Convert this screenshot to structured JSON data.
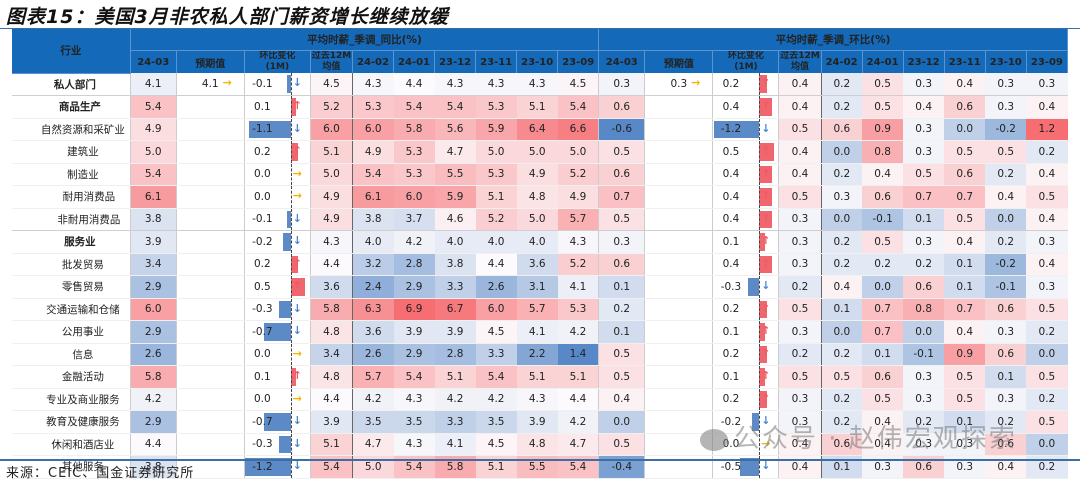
{
  "title": "图表15：美国3月非农私人部门薪资增长继续放缓",
  "source": "来源：CEIC、国金证券研究所",
  "watermark": "公众号 · 赵伟宏观探索",
  "header": {
    "industry": "行业",
    "group_yoy": "平均时薪_季调_同比(%)",
    "group_mom": "平均时薪_季调_环比(%)",
    "cols": [
      "24-03",
      "预期值",
      "环比变化(1M)",
      "过去12M均值",
      "24-02",
      "24-01",
      "23-12",
      "23-11",
      "23-10",
      "23-09"
    ],
    "chg_line1": "环比变化",
    "chg_line2": "(1M)",
    "avg_line1": "过去12M",
    "avg_line2": "均值"
  },
  "colors": {
    "header_bg": "#1469b8",
    "pos_bar": "#f0666e",
    "neg_bar": "#5b8ac7",
    "up_arrow": "#f05a60",
    "down_arrow": "#4a86d0",
    "flat_arrow": "#f3b400"
  },
  "rows": [
    {
      "name": "私人部门",
      "level": 0,
      "yoy": {
        "cur": "4.1",
        "exp": "4.1",
        "exp_arrow": "→",
        "chg": "-0.1",
        "chg_dir": "down",
        "avg": "4.5",
        "hist": [
          "4.3",
          "4.4",
          "4.3",
          "4.3",
          "4.3",
          "4.5"
        ]
      },
      "mom": {
        "cur": "0.3",
        "exp": "0.3",
        "exp_arrow": "→",
        "chg": "0.2",
        "chg_dir": "up",
        "avg": "0.4",
        "hist": [
          "0.2",
          "0.5",
          "0.3",
          "0.4",
          "0.3",
          "0.3"
        ]
      }
    },
    {
      "name": "商品生产",
      "level": 1,
      "yoy": {
        "cur": "5.4",
        "exp": "",
        "chg": "0.1",
        "chg_dir": "up",
        "avg": "5.2",
        "hist": [
          "5.3",
          "5.4",
          "5.4",
          "5.3",
          "5.1",
          "5.4"
        ]
      },
      "mom": {
        "cur": "0.6",
        "exp": "",
        "chg": "0.4",
        "chg_dir": "up",
        "avg": "0.4",
        "hist": [
          "0.2",
          "0.5",
          "0.4",
          "0.6",
          "0.3",
          "0.4"
        ]
      }
    },
    {
      "name": "自然资源和采矿业",
      "level": 2,
      "yoy": {
        "cur": "4.9",
        "exp": "",
        "chg": "-1.1",
        "chg_dir": "down",
        "avg": "6.0",
        "hist": [
          "6.0",
          "5.8",
          "5.6",
          "5.9",
          "6.4",
          "6.6"
        ]
      },
      "mom": {
        "cur": "-0.6",
        "exp": "",
        "chg": "-1.2",
        "chg_dir": "down",
        "avg": "0.5",
        "hist": [
          "0.6",
          "0.9",
          "0.3",
          "0.0",
          "-0.2",
          "1.2"
        ]
      }
    },
    {
      "name": "建筑业",
      "level": 2,
      "yoy": {
        "cur": "5.0",
        "exp": "",
        "chg": "0.2",
        "chg_dir": "up",
        "avg": "5.1",
        "hist": [
          "4.9",
          "5.3",
          "4.7",
          "5.0",
          "5.0",
          "5.0"
        ]
      },
      "mom": {
        "cur": "0.5",
        "exp": "",
        "chg": "0.5",
        "chg_dir": "up",
        "avg": "0.4",
        "hist": [
          "0.0",
          "0.8",
          "0.3",
          "0.5",
          "0.5",
          "0.2"
        ]
      }
    },
    {
      "name": "制造业",
      "level": 2,
      "yoy": {
        "cur": "5.4",
        "exp": "",
        "chg": "0.0",
        "chg_dir": "flat",
        "avg": "5.0",
        "hist": [
          "5.4",
          "5.3",
          "5.5",
          "5.3",
          "4.9",
          "5.2"
        ]
      },
      "mom": {
        "cur": "0.6",
        "exp": "",
        "chg": "0.4",
        "chg_dir": "up",
        "avg": "0.4",
        "hist": [
          "0.2",
          "0.4",
          "0.5",
          "0.6",
          "0.2",
          "0.4"
        ]
      }
    },
    {
      "name": "耐用消费品",
      "level": 3,
      "yoy": {
        "cur": "6.1",
        "exp": "",
        "chg": "0.0",
        "chg_dir": "flat",
        "avg": "4.9",
        "hist": [
          "6.1",
          "6.0",
          "5.9",
          "5.1",
          "4.8",
          "4.9"
        ]
      },
      "mom": {
        "cur": "0.7",
        "exp": "",
        "chg": "0.4",
        "chg_dir": "up",
        "avg": "0.5",
        "hist": [
          "0.3",
          "0.6",
          "0.7",
          "0.7",
          "0.4",
          "0.5"
        ]
      }
    },
    {
      "name": "非耐用消费品",
      "level": 3,
      "yoy": {
        "cur": "3.8",
        "exp": "",
        "chg": "-0.1",
        "chg_dir": "down",
        "avg": "4.9",
        "hist": [
          "3.8",
          "3.7",
          "4.6",
          "5.2",
          "5.0",
          "5.7"
        ]
      },
      "mom": {
        "cur": "0.5",
        "exp": "",
        "chg": "0.4",
        "chg_dir": "up",
        "avg": "0.3",
        "hist": [
          "0.0",
          "-0.1",
          "0.1",
          "0.5",
          "0.0",
          "0.4"
        ]
      }
    },
    {
      "name": "服务业",
      "level": 1,
      "yoy": {
        "cur": "3.9",
        "exp": "",
        "chg": "-0.2",
        "chg_dir": "down",
        "avg": "4.3",
        "hist": [
          "4.0",
          "4.2",
          "4.0",
          "4.0",
          "4.0",
          "4.3"
        ]
      },
      "mom": {
        "cur": "0.3",
        "exp": "",
        "chg": "0.1",
        "chg_dir": "up",
        "avg": "0.3",
        "hist": [
          "0.2",
          "0.5",
          "0.3",
          "0.4",
          "0.2",
          "0.3"
        ]
      }
    },
    {
      "name": "批发贸易",
      "level": 2,
      "yoy": {
        "cur": "3.4",
        "exp": "",
        "chg": "0.2",
        "chg_dir": "up",
        "avg": "4.4",
        "hist": [
          "3.2",
          "2.8",
          "3.8",
          "4.4",
          "3.6",
          "5.2"
        ]
      },
      "mom": {
        "cur": "0.6",
        "exp": "",
        "chg": "0.4",
        "chg_dir": "up",
        "avg": "0.3",
        "hist": [
          "0.2",
          "0.2",
          "0.2",
          "0.1",
          "-0.2",
          "0.4"
        ]
      }
    },
    {
      "name": "零售贸易",
      "level": 2,
      "yoy": {
        "cur": "2.9",
        "exp": "",
        "chg": "0.5",
        "chg_dir": "up",
        "avg": "3.6",
        "hist": [
          "2.4",
          "2.9",
          "3.3",
          "2.6",
          "3.1",
          "4.1"
        ]
      },
      "mom": {
        "cur": "0.1",
        "exp": "",
        "chg": "-0.3",
        "chg_dir": "down",
        "avg": "0.2",
        "hist": [
          "0.4",
          "0.0",
          "0.6",
          "0.1",
          "-0.1",
          "0.3"
        ]
      }
    },
    {
      "name": "交通运输和仓储",
      "level": 2,
      "yoy": {
        "cur": "6.0",
        "exp": "",
        "chg": "-0.3",
        "chg_dir": "down",
        "avg": "5.8",
        "hist": [
          "6.3",
          "6.9",
          "6.7",
          "6.0",
          "5.7",
          "5.3"
        ]
      },
      "mom": {
        "cur": "0.2",
        "exp": "",
        "chg": "0.2",
        "chg_dir": "up",
        "avg": "0.5",
        "hist": [
          "0.1",
          "0.7",
          "0.8",
          "0.7",
          "0.6",
          "0.5"
        ]
      }
    },
    {
      "name": "公用事业",
      "level": 2,
      "yoy": {
        "cur": "2.9",
        "exp": "",
        "chg": "-0.7",
        "chg_dir": "down",
        "avg": "4.8",
        "hist": [
          "3.6",
          "3.9",
          "3.9",
          "4.5",
          "4.1",
          "4.2"
        ]
      },
      "mom": {
        "cur": "0.1",
        "exp": "",
        "chg": "0.1",
        "chg_dir": "up",
        "avg": "0.3",
        "hist": [
          "0.0",
          "0.7",
          "0.0",
          "0.4",
          "0.3",
          "0.2"
        ]
      }
    },
    {
      "name": "信息",
      "level": 2,
      "yoy": {
        "cur": "2.6",
        "exp": "",
        "chg": "0.0",
        "chg_dir": "flat",
        "avg": "3.4",
        "hist": [
          "2.6",
          "2.9",
          "2.8",
          "3.3",
          "2.2",
          "1.4"
        ]
      },
      "mom": {
        "cur": "0.5",
        "exp": "",
        "chg": "0.2",
        "chg_dir": "up",
        "avg": "0.2",
        "hist": [
          "0.2",
          "0.1",
          "-0.1",
          "0.9",
          "0.6",
          "0.0"
        ]
      }
    },
    {
      "name": "金融活动",
      "level": 2,
      "yoy": {
        "cur": "5.8",
        "exp": "",
        "chg": "0.1",
        "chg_dir": "up",
        "avg": "4.8",
        "hist": [
          "5.7",
          "5.4",
          "5.1",
          "5.4",
          "5.1",
          "5.1"
        ]
      },
      "mom": {
        "cur": "0.5",
        "exp": "",
        "chg": "0.1",
        "chg_dir": "up",
        "avg": "0.5",
        "hist": [
          "0.5",
          "0.6",
          "0.3",
          "0.5",
          "0.1",
          "0.5"
        ]
      }
    },
    {
      "name": "专业及商业服务",
      "level": 2,
      "yoy": {
        "cur": "4.2",
        "exp": "",
        "chg": "0.0",
        "chg_dir": "flat",
        "avg": "4.4",
        "hist": [
          "4.2",
          "4.3",
          "4.2",
          "4.2",
          "4.3",
          "4.4"
        ]
      },
      "mom": {
        "cur": "0.4",
        "exp": "",
        "chg": "0.2",
        "chg_dir": "up",
        "avg": "0.3",
        "hist": [
          "0.2",
          "0.5",
          "0.3",
          "0.5",
          "0.3",
          "0.2"
        ]
      }
    },
    {
      "name": "教育及健康服务",
      "level": 2,
      "yoy": {
        "cur": "2.9",
        "exp": "",
        "chg": "-0.7",
        "chg_dir": "down",
        "avg": "3.9",
        "hist": [
          "3.5",
          "3.5",
          "3.3",
          "3.5",
          "3.9",
          "4.2"
        ]
      },
      "mom": {
        "cur": "0.0",
        "exp": "",
        "chg": "-0.2",
        "chg_dir": "down",
        "avg": "0.3",
        "hist": [
          "0.2",
          "0.4",
          "0.2",
          "0.1",
          "0.2",
          "0.5"
        ]
      }
    },
    {
      "name": "休闲和酒店业",
      "level": 2,
      "yoy": {
        "cur": "4.4",
        "exp": "",
        "chg": "-0.3",
        "chg_dir": "down",
        "avg": "5.1",
        "hist": [
          "4.7",
          "4.3",
          "4.1",
          "4.5",
          "4.8",
          "4.7"
        ]
      },
      "mom": {
        "cur": "0.5",
        "exp": "",
        "chg": "0.0",
        "chg_dir": "flat",
        "avg": "0.4",
        "hist": [
          "0.6",
          "0.4",
          "0.3",
          "0.3",
          "0.6",
          "0.0"
        ]
      }
    },
    {
      "name": "其他服务",
      "level": 2,
      "yoy": {
        "cur": "3.8",
        "exp": "",
        "chg": "-1.2",
        "chg_dir": "down",
        "avg": "5.4",
        "hist": [
          "5.0",
          "5.4",
          "5.8",
          "5.1",
          "5.5",
          "5.4"
        ]
      },
      "mom": {
        "cur": "-0.4",
        "exp": "",
        "chg": "-0.5",
        "chg_dir": "down",
        "avg": "0.4",
        "hist": [
          "0.1",
          "0.3",
          "0.6",
          "0.3",
          "0.4",
          "0.2"
        ]
      }
    }
  ]
}
